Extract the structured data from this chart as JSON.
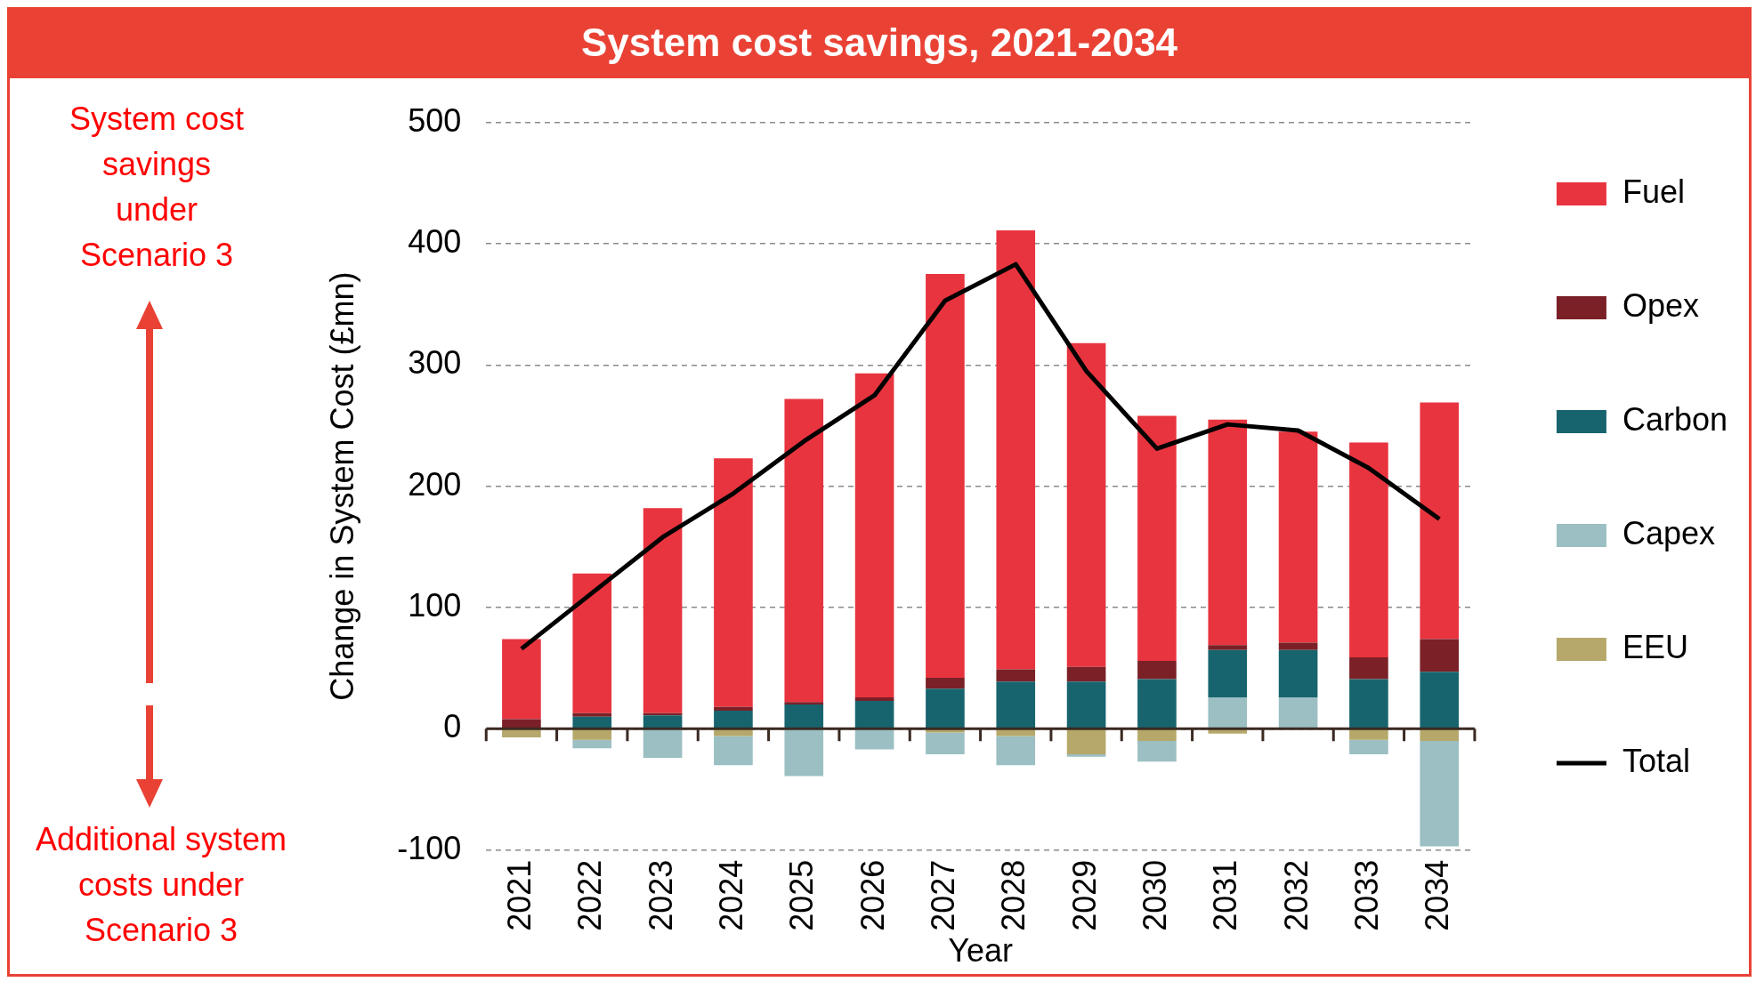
{
  "chart_data": {
    "type": "bar",
    "title": "System cost savings, 2021-2034",
    "xlabel": "Year",
    "ylabel": "Change in System Cost (£mn)",
    "categories": [
      "2021",
      "2022",
      "2023",
      "2024",
      "2025",
      "2026",
      "2027",
      "2028",
      "2029",
      "2030",
      "2031",
      "2032",
      "2033",
      "2034"
    ],
    "stacked": true,
    "series": [
      {
        "name": "EEU",
        "color": "#b5a86a",
        "values": [
          -7,
          -9,
          0,
          -6,
          0,
          0,
          -3,
          -6,
          -21,
          -10,
          -4,
          0,
          -9,
          -10
        ]
      },
      {
        "name": "Capex",
        "color": "#9bbfc2",
        "values": [
          0,
          -7,
          -24,
          -24,
          -39,
          -17,
          -18,
          -24,
          -2,
          -17,
          26,
          26,
          -12,
          -87
        ]
      },
      {
        "name": "Carbon",
        "color": "#17646e",
        "values": [
          0,
          10,
          11,
          15,
          20,
          23,
          33,
          39,
          39,
          41,
          39,
          39,
          41,
          47
        ]
      },
      {
        "name": "Opex",
        "color": "#7b2027",
        "values": [
          8,
          3,
          2,
          3,
          2,
          3,
          9,
          10,
          12,
          15,
          4,
          6,
          18,
          27
        ]
      },
      {
        "name": "Fuel",
        "color": "#e8343f",
        "values": [
          66,
          115,
          169,
          205,
          250,
          267,
          333,
          362,
          267,
          202,
          186,
          174,
          177,
          195
        ]
      },
      {
        "name": "Total",
        "type": "line",
        "color": "#000000",
        "values": [
          66,
          112,
          158,
          194,
          237,
          275,
          353,
          383,
          295,
          231,
          251,
          246,
          215,
          173
        ]
      }
    ],
    "ylim": [
      -100,
      500
    ],
    "yticks": [
      -100,
      0,
      100,
      200,
      300,
      400,
      500
    ],
    "grid": "y",
    "legend": "right",
    "marker": "none",
    "line_style": "solid",
    "annotations": [
      "System cost savings under Scenario 3",
      "Additional system costs under Scenario 3"
    ]
  }
}
